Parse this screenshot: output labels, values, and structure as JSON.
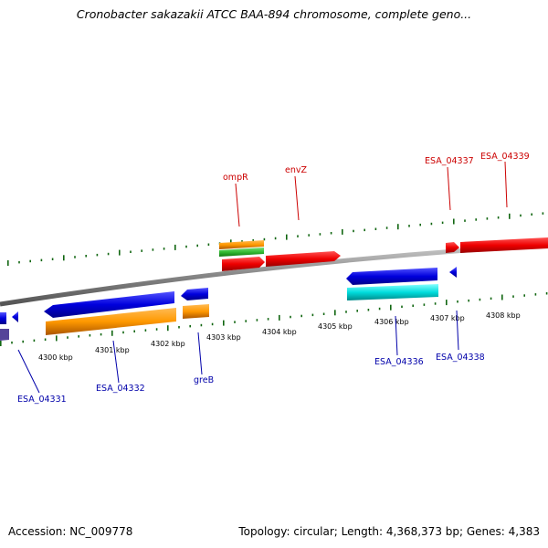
{
  "title": "Cronobacter sakazakii ATCC BAA-894 chromosome, complete geno...",
  "footer": {
    "accession": "Accession: NC_009778",
    "summary": "Topology: circular; Length: 4,368,373 bp; Genes: 4,383"
  },
  "colors": {
    "forward_gene": "#ee0000",
    "reverse_gene": "#0000dd",
    "cds_orange": "#ff9900",
    "cds_green": "#33bb33",
    "rna_cyan": "#00dddd",
    "tick_green": "#116611",
    "backbone": "#888888",
    "label_red": "#cc0000",
    "label_blue": "#0000aa"
  },
  "scale_labels": [
    "4300 kbp",
    "4301 kbp",
    "4302 kbp",
    "4303 kbp",
    "4304 kbp",
    "4305 kbp",
    "4306 kbp",
    "4307 kbp",
    "4308 kbp"
  ],
  "top_gene_labels": [
    "ompR",
    "envZ",
    "ESA_04337",
    "ESA_04339"
  ],
  "bottom_gene_labels": [
    "ESA_04331",
    "ESA_04332",
    "greB",
    "ESA_04336",
    "ESA_04338"
  ]
}
